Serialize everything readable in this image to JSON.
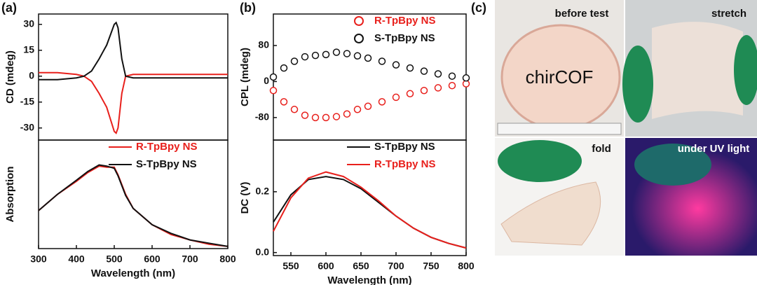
{
  "chart_data": [
    {
      "type": "line",
      "panel": "(a)",
      "ylabel": "CD (mdeg)",
      "x": [
        300,
        350,
        400,
        420,
        440,
        460,
        470,
        480,
        490,
        500,
        505,
        510,
        520,
        530,
        550,
        600,
        700,
        800
      ],
      "xlim": [
        300,
        800
      ],
      "ylim": [
        -37,
        36
      ],
      "yticks": [
        30,
        15,
        0,
        -15,
        -30
      ],
      "series": [
        {
          "name": "R-TpBpy NS",
          "color": "#e8201c",
          "values": [
            2,
            2,
            1,
            0,
            -3,
            -10,
            -14,
            -18,
            -25,
            -32,
            -33,
            -30,
            -10,
            0,
            1,
            1,
            1,
            1
          ]
        },
        {
          "name": "S-TpBpy NS",
          "color": "#111111",
          "values": [
            -2,
            -2,
            -1,
            0,
            3,
            10,
            14,
            18,
            24,
            30,
            31,
            28,
            10,
            0,
            -1,
            -1,
            -1,
            -1
          ]
        }
      ]
    },
    {
      "type": "line",
      "ylabel": "Absorption",
      "xlabel": "Wavelength (nm)",
      "x": [
        300,
        350,
        400,
        430,
        460,
        480,
        500,
        510,
        530,
        550,
        600,
        650,
        700,
        750,
        800
      ],
      "xlim": [
        300,
        800
      ],
      "xticks": [
        300,
        400,
        500,
        600,
        700,
        800
      ],
      "ylim": [
        0,
        1
      ],
      "legend": "upper right",
      "series": [
        {
          "name": "R-TpBpy NS",
          "color": "#e8201c",
          "values": [
            0.35,
            0.5,
            0.62,
            0.7,
            0.76,
            0.75,
            0.75,
            0.68,
            0.5,
            0.37,
            0.22,
            0.13,
            0.08,
            0.04,
            0.02
          ]
        },
        {
          "name": "S-TpBpy NS",
          "color": "#111111",
          "values": [
            0.35,
            0.5,
            0.63,
            0.71,
            0.77,
            0.76,
            0.74,
            0.67,
            0.49,
            0.37,
            0.22,
            0.14,
            0.08,
            0.05,
            0.02
          ]
        }
      ]
    },
    {
      "type": "line",
      "panel": "(b)",
      "ylabel": "CPL (mdeg)",
      "markers": true,
      "x": [
        525,
        540,
        555,
        570,
        585,
        600,
        615,
        630,
        645,
        660,
        680,
        700,
        720,
        740,
        760,
        780,
        800
      ],
      "xlim": [
        525,
        800
      ],
      "ylim": [
        -130,
        150
      ],
      "yticks": [
        80,
        0,
        -80
      ],
      "legend": "upper right",
      "series": [
        {
          "name": "R-TpBpy NS",
          "color": "#e8201c",
          "values": [
            -20,
            -45,
            -62,
            -75,
            -80,
            -80,
            -78,
            -72,
            -62,
            -55,
            -45,
            -35,
            -27,
            -20,
            -14,
            -9,
            -5
          ]
        },
        {
          "name": "S-TpBpy NS",
          "color": "#111111",
          "values": [
            10,
            30,
            45,
            55,
            58,
            60,
            65,
            62,
            57,
            52,
            45,
            37,
            30,
            23,
            17,
            12,
            8
          ]
        }
      ]
    },
    {
      "type": "line",
      "ylabel": "DC (V)",
      "xlabel": "Wavelength (nm)",
      "x": [
        525,
        550,
        575,
        600,
        625,
        650,
        675,
        700,
        725,
        750,
        775,
        800
      ],
      "xlim": [
        525,
        800
      ],
      "xticks": [
        550,
        600,
        650,
        700,
        750,
        800
      ],
      "ylim": [
        -0.01,
        0.37
      ],
      "yticks": [
        {
          "value": 0,
          "label": "0.0"
        },
        0.2
      ],
      "legend": "upper right",
      "series": [
        {
          "name": "S-TpBpy NS",
          "color": "#111111",
          "values": [
            0.1,
            0.19,
            0.24,
            0.25,
            0.24,
            0.21,
            0.165,
            0.12,
            0.08,
            0.05,
            0.03,
            0.015
          ]
        },
        {
          "name": "R-TpBpy NS",
          "color": "#e8201c",
          "values": [
            0.07,
            0.18,
            0.245,
            0.265,
            0.25,
            0.215,
            0.17,
            0.12,
            0.08,
            0.05,
            0.03,
            0.015
          ]
        }
      ]
    }
  ],
  "panel_c": {
    "label": "(c)",
    "dish_text": "chirCOF",
    "photos": [
      "before test",
      "stretch",
      "fold",
      "under UV light"
    ]
  }
}
